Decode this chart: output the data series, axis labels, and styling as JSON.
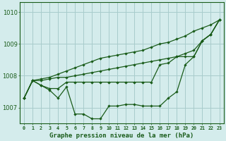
{
  "x": [
    0,
    1,
    2,
    3,
    4,
    5,
    6,
    7,
    8,
    9,
    10,
    11,
    12,
    13,
    14,
    15,
    16,
    17,
    18,
    19,
    20,
    21,
    22,
    23
  ],
  "line_bottom": [
    1007.3,
    1007.85,
    1007.7,
    1007.55,
    1007.3,
    1007.65,
    1006.8,
    1006.8,
    1006.65,
    1006.65,
    1007.05,
    1007.05,
    1007.1,
    1007.1,
    1007.05,
    1007.05,
    1007.05,
    1007.3,
    1007.5,
    1008.35,
    1008.6,
    1009.1,
    1009.3,
    1009.75
  ],
  "line_mid1": [
    1007.3,
    1007.85,
    1007.7,
    1007.6,
    1007.6,
    1007.8,
    1007.8,
    1007.8,
    1007.8,
    1007.8,
    1007.8,
    1007.8,
    1007.8,
    1007.8,
    1007.8,
    1007.8,
    1008.35,
    1008.4,
    1008.6,
    1008.6,
    1008.6,
    1009.1,
    1009.3,
    1009.75
  ],
  "line_mid2": [
    1007.3,
    1007.85,
    1007.85,
    1007.9,
    1007.95,
    1007.95,
    1008.0,
    1008.05,
    1008.1,
    1008.15,
    1008.2,
    1008.25,
    1008.3,
    1008.35,
    1008.4,
    1008.45,
    1008.5,
    1008.55,
    1008.6,
    1008.7,
    1008.8,
    1009.1,
    1009.3,
    1009.75
  ],
  "line_top": [
    1007.3,
    1007.85,
    1007.9,
    1007.95,
    1008.05,
    1008.15,
    1008.25,
    1008.35,
    1008.45,
    1008.55,
    1008.6,
    1008.65,
    1008.7,
    1008.75,
    1008.8,
    1008.9,
    1009.0,
    1009.05,
    1009.15,
    1009.25,
    1009.4,
    1009.5,
    1009.6,
    1009.75
  ],
  "bg_color": "#d4ecec",
  "line_color": "#1a5c1a",
  "grid_color": "#a8cccc",
  "xlabel": "Graphe pression niveau de la mer (hPa)",
  "yticks": [
    1007,
    1008,
    1009,
    1010
  ],
  "ylim": [
    1006.5,
    1010.3
  ],
  "xlim": [
    -0.5,
    23.5
  ]
}
